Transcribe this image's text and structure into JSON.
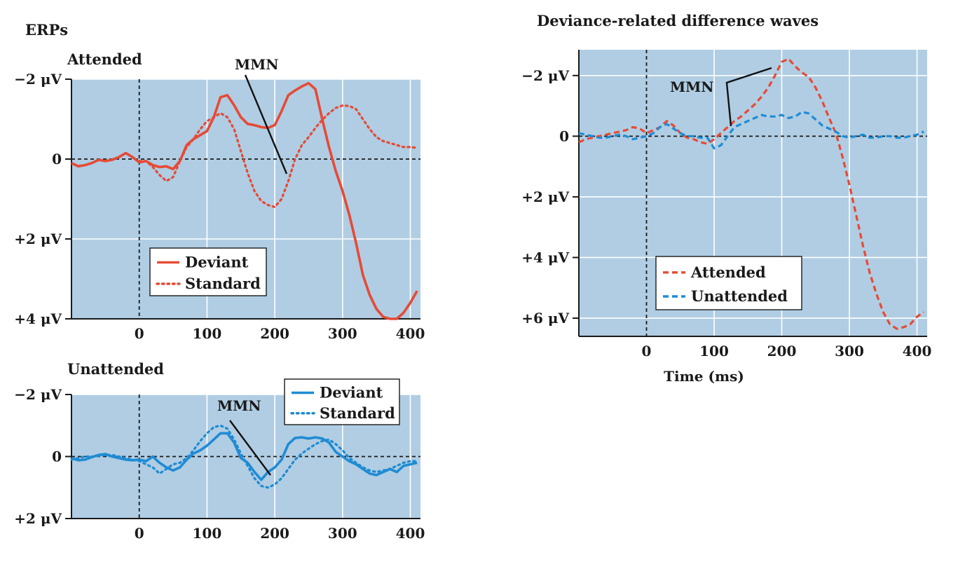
{
  "figure": {
    "left_heading": "ERPs",
    "right_heading": "Deviance-related difference waves"
  },
  "colors": {
    "plot_bg": "#b0cde3",
    "attended": "#e64a35",
    "unattended": "#1f8bd4",
    "gridline": "#ffffff",
    "axis": "#1a1a1a"
  },
  "chart_data": [
    {
      "id": "attended",
      "type": "line",
      "title": "Attended",
      "xlim": [
        -100,
        415
      ],
      "ylim": [
        -2.0,
        4.0
      ],
      "y_inverted": true,
      "x_ticks": [
        0,
        100,
        200,
        300,
        400
      ],
      "x_tick_labels": [
        "0",
        "100",
        "200",
        "300",
        "400"
      ],
      "y_ticks": [
        -2,
        0,
        2,
        4
      ],
      "y_tick_labels": [
        "−2 μV",
        "0",
        "+2 μV",
        "+4 μV"
      ],
      "grid": true,
      "legend_position": "lower-center",
      "annotation": "MMN",
      "series": [
        {
          "name": "Deviant",
          "style": "solid",
          "x": [
            -100,
            -90,
            -80,
            -70,
            -60,
            -50,
            -40,
            -30,
            -20,
            -10,
            0,
            10,
            20,
            30,
            40,
            50,
            60,
            70,
            80,
            90,
            100,
            110,
            120,
            130,
            140,
            150,
            160,
            170,
            180,
            190,
            200,
            210,
            220,
            230,
            240,
            250,
            260,
            270,
            280,
            290,
            300,
            310,
            320,
            330,
            340,
            350,
            360,
            370,
            380,
            390,
            400,
            410
          ],
          "values": [
            0.1,
            0.18,
            0.15,
            0.1,
            0.02,
            0.05,
            0.02,
            -0.05,
            -0.15,
            -0.05,
            0.08,
            0.05,
            0.15,
            0.2,
            0.18,
            0.25,
            0.05,
            -0.35,
            -0.5,
            -0.6,
            -0.7,
            -1.05,
            -1.55,
            -1.6,
            -1.35,
            -1.05,
            -0.88,
            -0.85,
            -0.8,
            -0.78,
            -0.85,
            -1.2,
            -1.6,
            -1.72,
            -1.82,
            -1.9,
            -1.75,
            -1.0,
            -0.3,
            0.3,
            0.8,
            1.4,
            2.1,
            2.9,
            3.4,
            3.75,
            3.95,
            4.0,
            4.0,
            3.85,
            3.6,
            3.3
          ]
        },
        {
          "name": "Standard",
          "style": "dotted",
          "x": [
            0,
            10,
            20,
            30,
            40,
            50,
            60,
            70,
            80,
            90,
            100,
            110,
            120,
            130,
            140,
            150,
            160,
            170,
            180,
            190,
            200,
            210,
            220,
            230,
            240,
            250,
            260,
            270,
            280,
            290,
            300,
            310,
            320,
            330,
            340,
            350,
            360,
            370,
            380,
            390,
            400,
            410
          ],
          "values": [
            0.05,
            0.05,
            0.2,
            0.4,
            0.55,
            0.45,
            0.05,
            -0.3,
            -0.5,
            -0.75,
            -0.95,
            -1.05,
            -1.15,
            -1.05,
            -0.75,
            -0.2,
            0.35,
            0.8,
            1.05,
            1.15,
            1.2,
            1.0,
            0.55,
            0.0,
            -0.35,
            -0.55,
            -0.78,
            -0.98,
            -1.15,
            -1.28,
            -1.34,
            -1.33,
            -1.25,
            -1.0,
            -0.75,
            -0.55,
            -0.45,
            -0.4,
            -0.35,
            -0.3,
            -0.3,
            -0.28
          ]
        }
      ]
    },
    {
      "id": "unattended",
      "type": "line",
      "title": "Unattended",
      "xlim": [
        -100,
        415
      ],
      "ylim": [
        -2.0,
        2.0
      ],
      "y_inverted": true,
      "x_ticks": [
        0,
        100,
        200,
        300,
        400
      ],
      "x_tick_labels": [
        "0",
        "100",
        "200",
        "300",
        "400"
      ],
      "y_ticks": [
        -2,
        0,
        2
      ],
      "y_tick_labels": [
        "−2 μV",
        "0",
        "+2 μV"
      ],
      "grid": true,
      "legend_position": "top-right",
      "annotation": "MMN",
      "series": [
        {
          "name": "Deviant",
          "style": "solid",
          "x": [
            -100,
            -90,
            -80,
            -70,
            -60,
            -50,
            -40,
            -30,
            -20,
            -10,
            0,
            10,
            20,
            30,
            40,
            50,
            60,
            70,
            80,
            90,
            100,
            110,
            120,
            130,
            140,
            150,
            160,
            170,
            180,
            190,
            200,
            210,
            220,
            230,
            240,
            250,
            260,
            270,
            280,
            290,
            300,
            310,
            320,
            330,
            340,
            350,
            360,
            370,
            380,
            390,
            400,
            410
          ],
          "values": [
            0.05,
            0.12,
            0.1,
            0.02,
            -0.05,
            -0.08,
            0.0,
            0.05,
            0.1,
            0.12,
            0.1,
            0.15,
            0.0,
            0.2,
            0.35,
            0.45,
            0.35,
            0.1,
            -0.1,
            -0.2,
            -0.35,
            -0.55,
            -0.75,
            -0.75,
            -0.45,
            0.05,
            0.2,
            0.5,
            0.75,
            0.5,
            0.35,
            0.1,
            -0.4,
            -0.6,
            -0.62,
            -0.58,
            -0.62,
            -0.58,
            -0.45,
            -0.15,
            0.0,
            0.15,
            0.25,
            0.4,
            0.55,
            0.6,
            0.5,
            0.4,
            0.5,
            0.3,
            0.25,
            0.2
          ]
        },
        {
          "name": "Standard",
          "style": "dotted",
          "x": [
            -100,
            -90,
            -80,
            -70,
            -60,
            -50,
            -40,
            -30,
            -20,
            -10,
            0,
            10,
            20,
            30,
            40,
            50,
            60,
            70,
            80,
            90,
            100,
            110,
            120,
            130,
            140,
            150,
            160,
            170,
            180,
            190,
            200,
            210,
            220,
            230,
            240,
            250,
            260,
            270,
            280,
            290,
            300,
            310,
            320,
            330,
            340,
            350,
            360,
            370,
            380,
            390,
            400,
            410
          ],
          "values": [
            0.1,
            0.05,
            0.0,
            0.0,
            -0.02,
            -0.05,
            -0.05,
            0.0,
            0.05,
            0.1,
            0.15,
            0.25,
            0.35,
            0.55,
            0.4,
            0.25,
            0.2,
            0.05,
            -0.2,
            -0.5,
            -0.75,
            -0.95,
            -1.0,
            -0.9,
            -0.55,
            -0.1,
            0.3,
            0.7,
            0.95,
            1.0,
            0.9,
            0.7,
            0.4,
            0.1,
            -0.1,
            -0.25,
            -0.4,
            -0.5,
            -0.55,
            -0.4,
            -0.2,
            0.05,
            0.2,
            0.35,
            0.45,
            0.5,
            0.45,
            0.4,
            0.3,
            0.2,
            0.15,
            0.15
          ]
        }
      ]
    },
    {
      "id": "difference",
      "type": "line",
      "title": "Deviance-related difference waves",
      "xlabel": "Time (ms)",
      "xlim": [
        -100,
        415
      ],
      "ylim": [
        -2.85,
        6.6
      ],
      "y_inverted": true,
      "x_ticks": [
        0,
        100,
        200,
        300,
        400
      ],
      "x_tick_labels": [
        "0",
        "100",
        "200",
        "300",
        "400"
      ],
      "y_ticks": [
        -2,
        0,
        2,
        4,
        6
      ],
      "y_tick_labels": [
        "−2 μV",
        "0",
        "+2 μV",
        "+4 μV",
        "+6 μV"
      ],
      "grid": true,
      "legend_position": "lower-left",
      "annotation": "MMN",
      "series": [
        {
          "name": "Attended",
          "style": "dashed",
          "x": [
            -100,
            -90,
            -80,
            -70,
            -60,
            -50,
            -40,
            -30,
            -20,
            -10,
            0,
            10,
            20,
            30,
            40,
            50,
            60,
            70,
            80,
            90,
            100,
            110,
            120,
            130,
            140,
            150,
            160,
            170,
            180,
            190,
            200,
            210,
            220,
            230,
            240,
            250,
            260,
            270,
            280,
            290,
            300,
            310,
            320,
            330,
            340,
            350,
            360,
            370,
            380,
            390,
            400,
            410
          ],
          "values": [
            0.2,
            0.1,
            0.05,
            0.0,
            -0.05,
            -0.1,
            -0.15,
            -0.2,
            -0.3,
            -0.25,
            -0.1,
            -0.2,
            -0.3,
            -0.5,
            -0.35,
            -0.1,
            0.05,
            0.1,
            0.2,
            0.25,
            0.1,
            -0.1,
            -0.3,
            -0.5,
            -0.65,
            -0.85,
            -1.05,
            -1.3,
            -1.6,
            -2.0,
            -2.45,
            -2.55,
            -2.3,
            -2.1,
            -1.95,
            -1.6,
            -1.15,
            -0.6,
            -0.1,
            0.7,
            1.6,
            2.6,
            3.6,
            4.5,
            5.2,
            5.8,
            6.2,
            6.35,
            6.3,
            6.2,
            5.95,
            5.8
          ]
        },
        {
          "name": "Unattended",
          "style": "dashed",
          "x": [
            -100,
            -90,
            -80,
            -70,
            -60,
            -50,
            -40,
            -30,
            -20,
            -10,
            0,
            10,
            20,
            30,
            40,
            50,
            60,
            70,
            80,
            90,
            100,
            110,
            120,
            130,
            140,
            150,
            160,
            170,
            180,
            190,
            200,
            210,
            220,
            230,
            240,
            250,
            260,
            270,
            280,
            290,
            300,
            310,
            320,
            330,
            340,
            350,
            360,
            370,
            380,
            390,
            400,
            410
          ],
          "values": [
            -0.1,
            -0.05,
            0.0,
            0.05,
            0.05,
            0.0,
            -0.05,
            0.0,
            0.1,
            0.05,
            0.0,
            -0.1,
            -0.3,
            -0.4,
            -0.25,
            -0.1,
            0.0,
            0.0,
            0.05,
            0.05,
            0.4,
            0.3,
            0.0,
            -0.3,
            -0.4,
            -0.5,
            -0.6,
            -0.7,
            -0.65,
            -0.65,
            -0.7,
            -0.6,
            -0.65,
            -0.8,
            -0.75,
            -0.55,
            -0.35,
            -0.25,
            -0.15,
            0.0,
            0.05,
            0.0,
            -0.05,
            0.05,
            0.05,
            0.0,
            0.0,
            0.05,
            0.05,
            0.0,
            -0.05,
            -0.15
          ]
        }
      ]
    }
  ]
}
